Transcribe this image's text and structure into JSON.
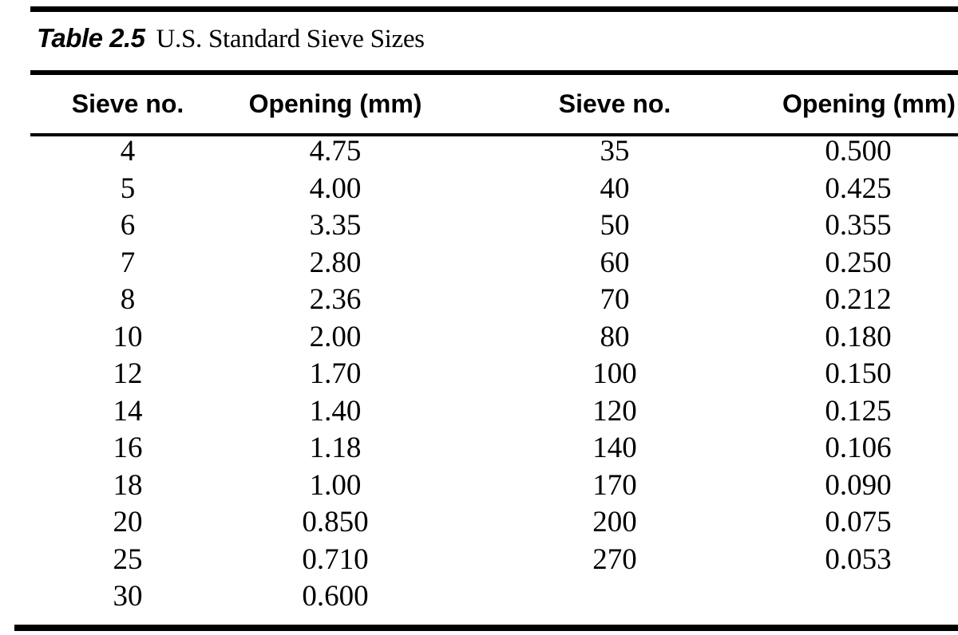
{
  "document": {
    "table_label": "Table 2.5",
    "table_title": "U.S. Standard Sieve Sizes"
  },
  "table": {
    "columns": [
      "Sieve no.",
      "Opening (mm)",
      "Sieve no.",
      "Opening (mm)"
    ],
    "rows": [
      [
        "4",
        "4.75",
        "35",
        "0.500"
      ],
      [
        "5",
        "4.00",
        "40",
        "0.425"
      ],
      [
        "6",
        "3.35",
        "50",
        "0.355"
      ],
      [
        "7",
        "2.80",
        "60",
        "0.250"
      ],
      [
        "8",
        "2.36",
        "70",
        "0.212"
      ],
      [
        "10",
        "2.00",
        "80",
        "0.180"
      ],
      [
        "12",
        "1.70",
        "100",
        "0.150"
      ],
      [
        "14",
        "1.40",
        "120",
        "0.125"
      ],
      [
        "16",
        "1.18",
        "140",
        "0.106"
      ],
      [
        "18",
        "1.00",
        "170",
        "0.090"
      ],
      [
        "20",
        "0.850",
        "200",
        "0.075"
      ],
      [
        "25",
        "0.710",
        "270",
        "0.053"
      ],
      [
        "30",
        "0.600",
        "",
        ""
      ]
    ]
  },
  "colors": {
    "ink": "#000000",
    "paper": "#ffffff"
  }
}
